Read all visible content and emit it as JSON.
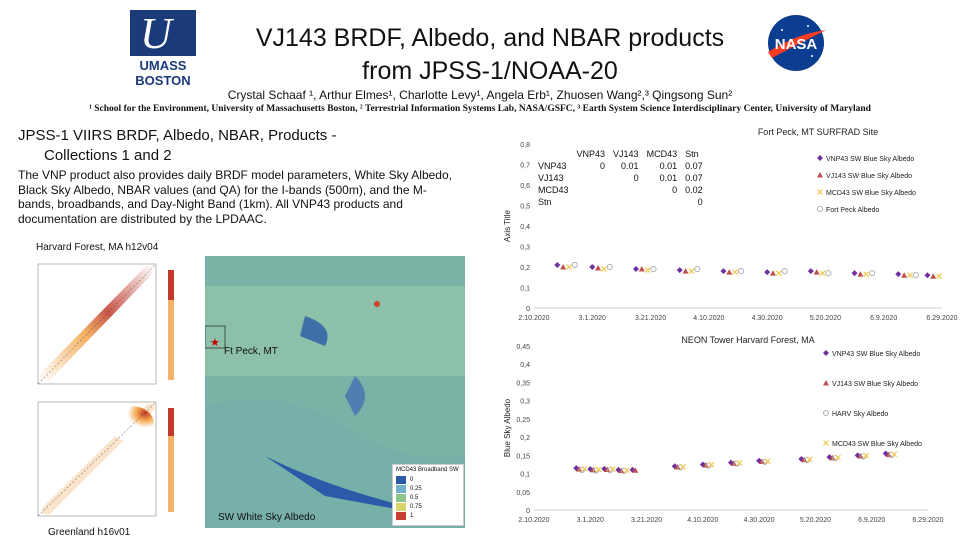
{
  "header": {
    "title_line1": "VJ143 BRDF, Albedo, and NBAR products",
    "title_line2": "from JPSS-1/NOAA-20",
    "authors": "Crystal Schaaf ¹, Arthur Elmes¹, Charlotte Levy¹, Angela Erb¹, Zhuosen Wang²,³ Qingsong Sun²",
    "affiliations": "¹ School for the Environment, University of Massachusetts Boston, ² Terrestrial Information Systems Lab, NASA/GSFC, ³ Earth System Science Interdisciplinary Center, University of Maryland",
    "umass_logo_line1": "UMASS",
    "umass_logo_line2": "BOSTON",
    "nasa_logo": "NASA"
  },
  "left": {
    "heading_line1": "JPSS-1 VIIRS  BRDF, Albedo,  NBAR,  Products -",
    "heading_line2": "Collections 1 and 2",
    "body": "The VNP product also provides daily BRDF model parameters, White Sky Albedo, Black Sky Albedo, NBAR  values (and QA) for the I-bands (500m), and the M-bands, broadbands, and Day-Night  Band (1km). All VNP43 products and documentation are distributed by the LPDAAC.",
    "label_harvard": "Harvard Forest, MA h12v04",
    "label_fortpeck": "Ft Peck, MT",
    "label_swwhite": "SW White Sky Albedo",
    "label_greenland": "Greenland h16v01",
    "map_legend_title": "MCD43 Broadband SW",
    "map_legend": [
      {
        "label": "0",
        "color": "#2b5aa8"
      },
      {
        "label": "0.25",
        "color": "#6fb3c9"
      },
      {
        "label": "0.5",
        "color": "#8dc48a"
      },
      {
        "label": "0.75",
        "color": "#d9d46a"
      },
      {
        "label": "1",
        "color": "#c94033"
      }
    ]
  },
  "chart_top": {
    "title": "Fort Peck, MT SURFRAD Site",
    "ylabel": "Axis Title",
    "yticks": [
      "0",
      "0,1",
      "0,2",
      "0,3",
      "0,4",
      "0,5",
      "0,6",
      "0,7",
      "0,8"
    ],
    "xticks": [
      "2.10.2020",
      "3.1.2020",
      "3.21.2020",
      "4.10.2020",
      "4.30.2020",
      "5.20.2020",
      "6.9.2020",
      "6.29.2020"
    ],
    "legend": [
      {
        "label": "VNP43 SW Blue Sky Albedo",
        "color": "#7030a0",
        "marker": "diamond"
      },
      {
        "label": "VJ143 SW Blue Sky Albedo",
        "color": "#c0504d",
        "marker": "triangle"
      },
      {
        "label": "MCD43 SW Blue Sky Albedo",
        "color": "#f2c94c",
        "marker": "x"
      },
      {
        "label": "Fort Peck Albedo",
        "color": "#aaaaaa",
        "marker": "circle"
      }
    ],
    "table": {
      "header": [
        "",
        "VNP43",
        "VJ143",
        "MCD43",
        "Stn"
      ],
      "rows": [
        [
          "VNP43",
          "0",
          "0.01",
          "0.01",
          "0.07"
        ],
        [
          "VJ143",
          "",
          "0",
          "0.01",
          "0.07"
        ],
        [
          "MCD43",
          "",
          "",
          "0",
          "0.02"
        ],
        [
          "Stn",
          "",
          "",
          "",
          "0"
        ]
      ]
    }
  },
  "chart_bottom": {
    "title": "NEON Tower Harvard Forest, MA",
    "ylabel": "Blue Sky Albedo",
    "yticks": [
      "0",
      "0,05",
      "0,1",
      "0,15",
      "0,2",
      "0,25",
      "0,3",
      "0,35",
      "0,4",
      "0,45"
    ],
    "xticks": [
      "2.10.2020",
      "3.1.2020",
      "3.21.2020",
      "4.10.2020",
      "4.30.2020",
      "5.20.2020",
      "6.9.2020",
      "6.29.2020"
    ],
    "legend": [
      {
        "label": "VNP43 SW Blue Sky Albedo",
        "color": "#7030a0",
        "marker": "diamond"
      },
      {
        "label": "VJ143 SW Blue Sky Albedo",
        "color": "#c0504d",
        "marker": "triangle"
      },
      {
        "label": "HARV Sky Albedo",
        "color": "#aaaaaa",
        "marker": "circle"
      },
      {
        "label": "MCD43 SW Blue Sky Albedo",
        "color": "#f2c94c",
        "marker": "x"
      }
    ]
  },
  "chart_data": [
    {
      "type": "scatter",
      "title": "Fort Peck, MT SURFRAD Site",
      "xlabel": "",
      "ylabel": "Axis Title",
      "ylim": [
        0,
        0.8
      ],
      "x_range_days": [
        0,
        140
      ],
      "series": [
        {
          "name": "VNP43 SW Blue Sky Albedo",
          "x": [
            8,
            20,
            35,
            50,
            65,
            80,
            95,
            110,
            125,
            135
          ],
          "y": [
            0.21,
            0.2,
            0.19,
            0.185,
            0.18,
            0.175,
            0.18,
            0.17,
            0.165,
            0.16
          ]
        },
        {
          "name": "VJ143 SW Blue Sky Albedo",
          "x": [
            10,
            22,
            37,
            52,
            67,
            82,
            97,
            112,
            127,
            137
          ],
          "y": [
            0.2,
            0.195,
            0.19,
            0.18,
            0.175,
            0.17,
            0.175,
            0.165,
            0.16,
            0.155
          ]
        },
        {
          "name": "MCD43 SW Blue Sky Albedo",
          "x": [
            12,
            24,
            39,
            54,
            69,
            84,
            99,
            114,
            129,
            139
          ],
          "y": [
            0.2,
            0.19,
            0.185,
            0.18,
            0.175,
            0.17,
            0.17,
            0.165,
            0.16,
            0.155
          ]
        },
        {
          "name": "Fort Peck Albedo",
          "x": [
            14,
            26,
            41,
            56,
            71,
            86,
            101,
            116,
            131
          ],
          "y": [
            0.21,
            0.2,
            0.19,
            0.19,
            0.18,
            0.18,
            0.17,
            0.17,
            0.16
          ]
        }
      ]
    },
    {
      "type": "scatter",
      "title": "NEON Tower Harvard Forest, MA",
      "xlabel": "",
      "ylabel": "Blue Sky Albedo",
      "ylim": [
        0,
        0.45
      ],
      "x_range_days": [
        0,
        140
      ],
      "series": [
        {
          "name": "VNP43 SW Blue Sky Albedo",
          "x": [
            15,
            20,
            25,
            30,
            35,
            50,
            60,
            70,
            80,
            95,
            105,
            115,
            125
          ],
          "y": [
            0.115,
            0.112,
            0.113,
            0.11,
            0.11,
            0.12,
            0.125,
            0.13,
            0.135,
            0.14,
            0.145,
            0.15,
            0.155
          ]
        },
        {
          "name": "VJ143 SW Blue Sky Albedo",
          "x": [
            16,
            21,
            26,
            31,
            36,
            51,
            61,
            71,
            81,
            96,
            106,
            116,
            126
          ],
          "y": [
            0.112,
            0.11,
            0.111,
            0.108,
            0.109,
            0.118,
            0.123,
            0.128,
            0.133,
            0.138,
            0.143,
            0.148,
            0.152
          ]
        },
        {
          "name": "HARV Sky Albedo",
          "x": [
            17,
            22,
            27,
            32,
            52,
            62,
            72,
            82,
            97,
            107,
            117,
            127
          ],
          "y": [
            0.11,
            0.108,
            0.109,
            0.107,
            0.117,
            0.122,
            0.127,
            0.132,
            0.137,
            0.142,
            0.147,
            0.151
          ]
        },
        {
          "name": "MCD43 SW Blue Sky Albedo",
          "x": [
            18,
            23,
            28,
            33,
            53,
            63,
            73,
            83,
            98,
            108,
            118,
            128
          ],
          "y": [
            0.113,
            0.111,
            0.112,
            0.109,
            0.119,
            0.124,
            0.129,
            0.134,
            0.139,
            0.144,
            0.149,
            0.153
          ]
        }
      ]
    }
  ]
}
